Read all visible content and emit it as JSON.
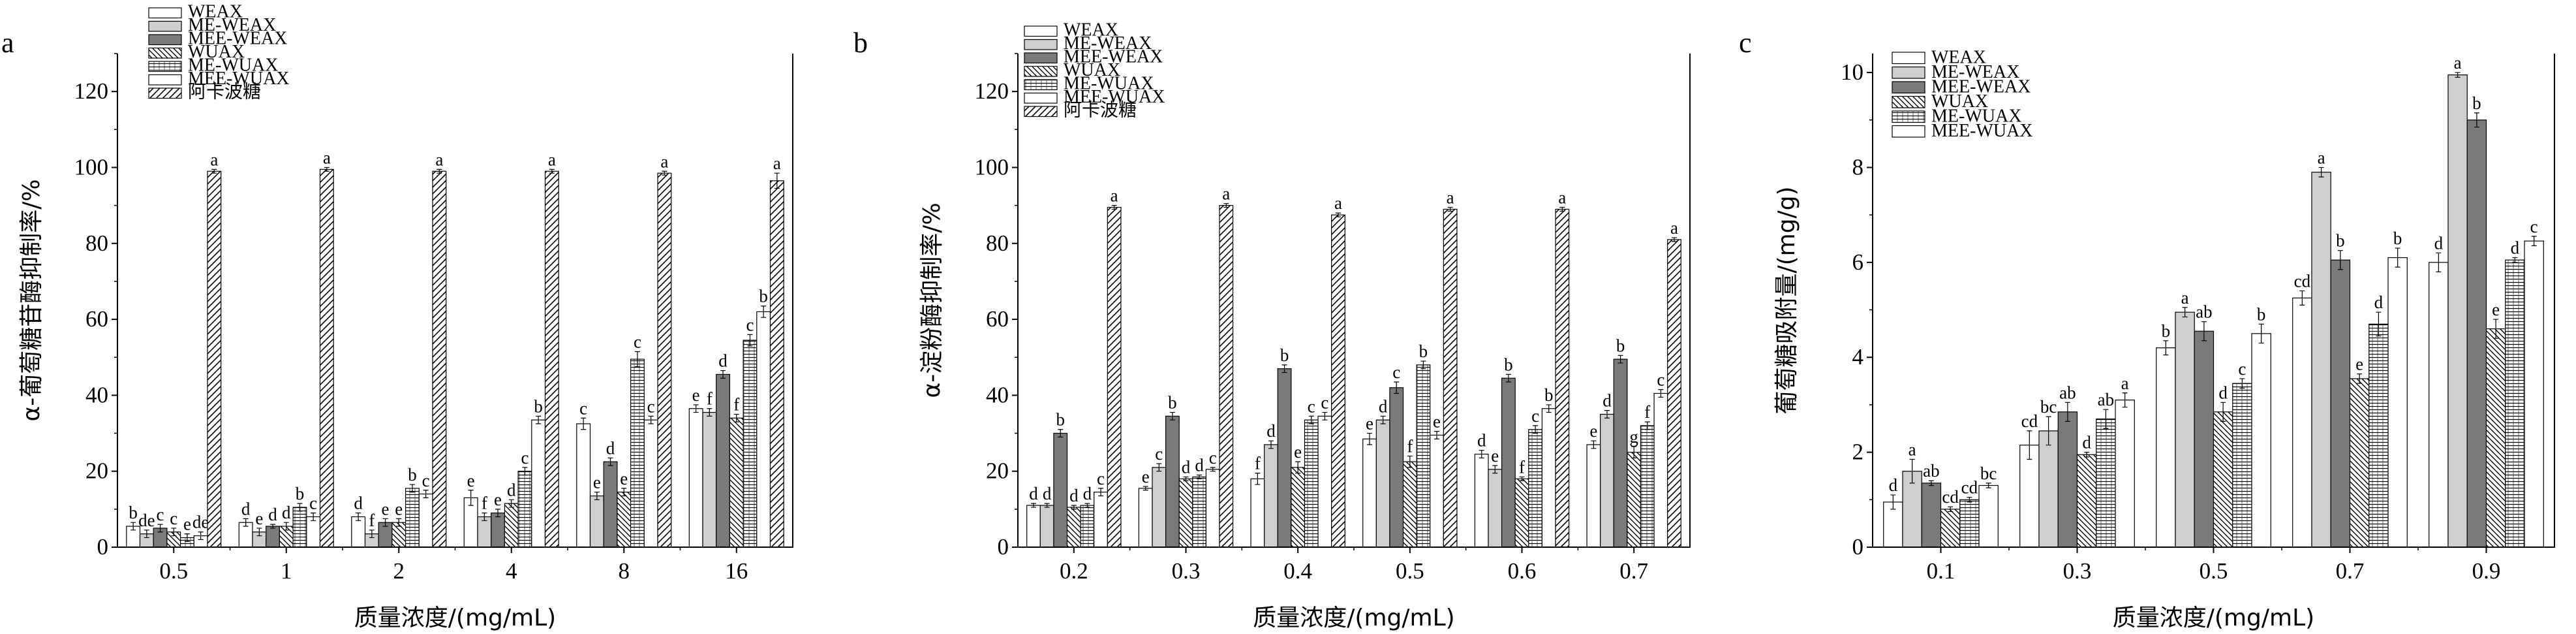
{
  "chart_data": [
    {
      "type": "bar",
      "panel_label": "a",
      "xlabel": "质量浓度/(mg/mL)",
      "ylabel": "α-葡萄糖苷酶抑制率/%",
      "ylim": [
        0,
        130
      ],
      "yticks": [
        0,
        20,
        40,
        60,
        80,
        100,
        120
      ],
      "legend_position": "top-left",
      "categories": [
        "0.5",
        "1",
        "2",
        "4",
        "8",
        "16"
      ],
      "series": [
        {
          "name": "WEAX",
          "pattern": "white",
          "values": [
            5.5,
            6.5,
            8,
            13,
            32.5,
            36.5
          ],
          "errors": [
            1,
            1,
            1,
            2,
            1.5,
            1
          ],
          "labels": [
            "b",
            "d",
            "d",
            "e",
            "c",
            "e"
          ]
        },
        {
          "name": "ME-WEAX",
          "pattern": "light-gray",
          "values": [
            3.5,
            4,
            3.5,
            8,
            13.5,
            35.5
          ],
          "errors": [
            1,
            1,
            1,
            1,
            1,
            1
          ],
          "labels": [
            "de",
            "e",
            "f",
            "f",
            "e",
            "f"
          ]
        },
        {
          "name": "MEE-WEAX",
          "pattern": "dark-gray",
          "values": [
            5,
            5.5,
            6.5,
            9,
            22.5,
            45.5
          ],
          "errors": [
            1,
            0.5,
            1,
            1,
            1,
            1
          ],
          "labels": [
            "c",
            "d",
            "e",
            "e",
            "d",
            "d"
          ]
        },
        {
          "name": "WUAX",
          "pattern": "diag-back",
          "values": [
            4,
            5.5,
            6.5,
            11.5,
            14.5,
            34
          ],
          "errors": [
            1,
            1,
            1,
            1,
            1,
            1
          ],
          "labels": [
            "c",
            "d",
            "e",
            "d",
            "e",
            "f"
          ]
        },
        {
          "name": "ME-WUAX",
          "pattern": "horizontal",
          "values": [
            2.5,
            10.5,
            15.5,
            20,
            49.5,
            54.5
          ],
          "errors": [
            1,
            1,
            1,
            1,
            2,
            1.5
          ],
          "labels": [
            "e",
            "b",
            "b",
            "c",
            "c",
            "c"
          ]
        },
        {
          "name": "MEE-WUAX",
          "pattern": "white",
          "values": [
            3,
            8,
            14,
            33.5,
            33.5,
            62
          ],
          "errors": [
            1,
            1,
            1,
            1,
            1,
            1.5
          ],
          "labels": [
            "de",
            "c",
            "c",
            "b",
            "c",
            "b"
          ]
        },
        {
          "name": "阿卡波糖",
          "pattern": "diag-fwd",
          "values": [
            99,
            99.5,
            99,
            99,
            98.5,
            96.5
          ],
          "errors": [
            0.5,
            0.5,
            0.5,
            0.5,
            0.5,
            2
          ],
          "labels": [
            "a",
            "a",
            "a",
            "a",
            "a",
            "a"
          ]
        }
      ]
    },
    {
      "type": "bar",
      "panel_label": "b",
      "xlabel": "质量浓度/(mg/mL)",
      "ylabel": "α-淀粉酶抑制率/%",
      "ylim": [
        0,
        130
      ],
      "yticks": [
        0,
        20,
        40,
        60,
        80,
        100,
        120
      ],
      "legend_position": "top-left",
      "categories": [
        "0.2",
        "0.3",
        "0.4",
        "0.5",
        "0.6",
        "0.7"
      ],
      "series": [
        {
          "name": "WEAX",
          "pattern": "white",
          "values": [
            11,
            15.5,
            18,
            28.5,
            24.5,
            27
          ],
          "errors": [
            0.5,
            0.5,
            1.5,
            1.5,
            1,
            1
          ],
          "labels": [
            "d",
            "e",
            "f",
            "e",
            "d",
            "e"
          ]
        },
        {
          "name": "ME-WEAX",
          "pattern": "light-gray",
          "values": [
            11,
            21,
            27,
            33.5,
            20.5,
            35
          ],
          "errors": [
            0.5,
            1,
            1,
            1,
            1,
            1
          ],
          "labels": [
            "d",
            "c",
            "d",
            "d",
            "e",
            "d"
          ]
        },
        {
          "name": "MEE-WEAX",
          "pattern": "dark-gray",
          "values": [
            30,
            34.5,
            47,
            42,
            44.5,
            49.5
          ],
          "errors": [
            1,
            1,
            1,
            1.5,
            1,
            1
          ],
          "labels": [
            "b",
            "b",
            "b",
            "c",
            "b",
            "b"
          ]
        },
        {
          "name": "WUAX",
          "pattern": "diag-back",
          "values": [
            10.5,
            18,
            21,
            22.5,
            18,
            25
          ],
          "errors": [
            0.5,
            0.5,
            1.5,
            1.5,
            0.5,
            1.5
          ],
          "labels": [
            "d",
            "d",
            "e",
            "f",
            "f",
            "g"
          ]
        },
        {
          "name": "ME-WUAX",
          "pattern": "horizontal",
          "values": [
            11,
            18.5,
            33.5,
            48,
            31,
            32
          ],
          "errors": [
            0.5,
            0.5,
            1,
            1,
            1,
            1
          ],
          "labels": [
            "d",
            "d",
            "c",
            "b",
            "c",
            "f"
          ]
        },
        {
          "name": "MEE-WUAX",
          "pattern": "white",
          "values": [
            14.5,
            20.5,
            34.5,
            29.5,
            36.5,
            40.5
          ],
          "errors": [
            1,
            0.5,
            1,
            1,
            1,
            1
          ],
          "labels": [
            "c",
            "c",
            "c",
            "e",
            "b",
            "c"
          ]
        },
        {
          "name": "阿卡波糖",
          "pattern": "diag-fwd",
          "values": [
            89.5,
            90,
            87.5,
            89,
            89,
            81
          ],
          "errors": [
            0.5,
            0.5,
            0.5,
            0.5,
            0.5,
            0.5
          ],
          "labels": [
            "a",
            "a",
            "a",
            "a",
            "a",
            "a"
          ]
        }
      ]
    },
    {
      "type": "bar",
      "panel_label": "c",
      "xlabel": "质量浓度/(mg/mL)",
      "ylabel": "葡萄糖吸附量/(mg/g)",
      "ylim": [
        0,
        10.4
      ],
      "yticks": [
        0,
        2,
        4,
        6,
        8,
        10
      ],
      "legend_position": "top-left",
      "categories": [
        "0.1",
        "0.3",
        "0.5",
        "0.7",
        "0.9"
      ],
      "series": [
        {
          "name": "WEAX",
          "pattern": "white",
          "values": [
            0.95,
            2.15,
            4.2,
            5.25,
            6.0
          ],
          "errors": [
            0.15,
            0.3,
            0.15,
            0.15,
            0.2
          ],
          "labels": [
            "d",
            "cd",
            "b",
            "cd",
            "d"
          ]
        },
        {
          "name": "ME-WEAX",
          "pattern": "light-gray",
          "values": [
            1.6,
            2.45,
            4.95,
            7.9,
            9.95
          ],
          "errors": [
            0.25,
            0.3,
            0.1,
            0.1,
            0.05
          ],
          "labels": [
            "a",
            "bc",
            "a",
            "a",
            "a"
          ]
        },
        {
          "name": "MEE-WEAX",
          "pattern": "dark-gray",
          "values": [
            1.35,
            2.85,
            4.55,
            6.05,
            9.0
          ],
          "errors": [
            0.05,
            0.2,
            0.2,
            0.2,
            0.15
          ],
          "labels": [
            "ab",
            "ab",
            "ab",
            "b",
            "b"
          ]
        },
        {
          "name": "WUAX",
          "pattern": "diag-back",
          "values": [
            0.8,
            1.95,
            2.85,
            3.55,
            4.6
          ],
          "errors": [
            0.05,
            0.05,
            0.2,
            0.1,
            0.2
          ],
          "labels": [
            "cd",
            "d",
            "d",
            "e",
            "e"
          ]
        },
        {
          "name": "ME-WUAX",
          "pattern": "horizontal",
          "values": [
            1.0,
            2.7,
            3.45,
            4.7,
            6.05
          ],
          "errors": [
            0.05,
            0.2,
            0.1,
            0.25,
            0.05
          ],
          "labels": [
            "cd",
            "ab",
            "c",
            "d",
            "d"
          ]
        },
        {
          "name": "MEE-WUAX",
          "pattern": "white",
          "values": [
            1.3,
            3.1,
            4.5,
            6.1,
            6.45
          ],
          "errors": [
            0.05,
            0.15,
            0.2,
            0.2,
            0.1
          ],
          "labels": [
            "bc",
            "a",
            "b",
            "b",
            "c"
          ]
        }
      ]
    }
  ]
}
